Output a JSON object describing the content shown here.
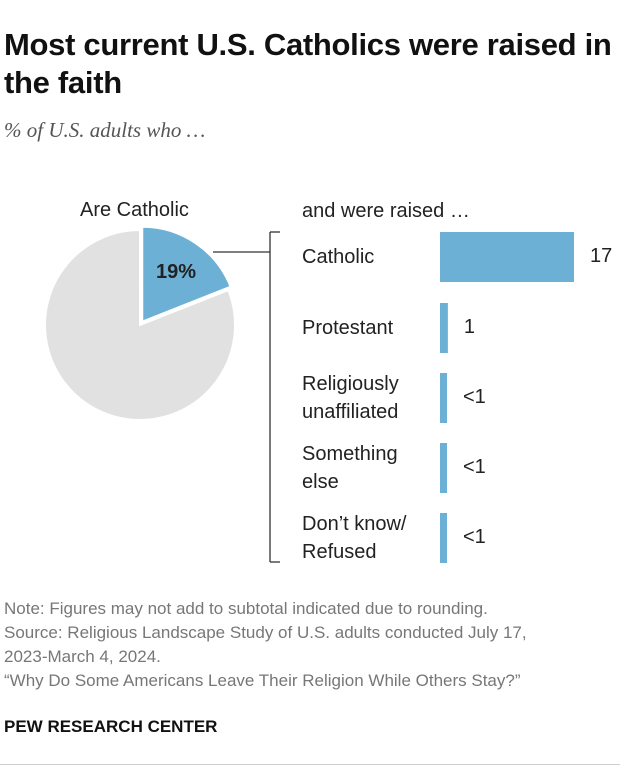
{
  "title": "Most current U.S. Catholics were raised in the faith",
  "subtitle": "% of U.S. adults who …",
  "colors": {
    "accent": "#6cb0d5",
    "pie_rest": "#e1e1e1",
    "bracket": "#333333"
  },
  "chart_data": [
    {
      "type": "pie",
      "label": "Are Catholic",
      "slices": [
        {
          "value": 19,
          "display": "19%",
          "color": "#6cb0d5"
        },
        {
          "value": 81,
          "color": "#e1e1e1"
        }
      ]
    },
    {
      "type": "bar",
      "header": "and were raised …",
      "categories": [
        [
          "Catholic"
        ],
        [
          "Protestant"
        ],
        [
          "Religiously",
          "unaffiliated"
        ],
        [
          "Something",
          "else"
        ],
        [
          "Don’t know/",
          "Refused"
        ]
      ],
      "values": [
        17,
        1,
        0.3,
        0.3,
        0.3
      ],
      "value_labels": [
        "17",
        "1",
        "<1",
        "<1",
        "<1"
      ],
      "xlim": [
        0,
        17
      ]
    }
  ],
  "notes": {
    "note": "Note: Figures may not add to subtotal indicated due to rounding.",
    "source_1": "Source: Religious Landscape Study of U.S. adults conducted July 17,",
    "source_2": "2023-March 4, 2024.",
    "report": "“Why Do Some Americans Leave Their Religion While Others Stay?”"
  },
  "brand": "PEW RESEARCH CENTER"
}
